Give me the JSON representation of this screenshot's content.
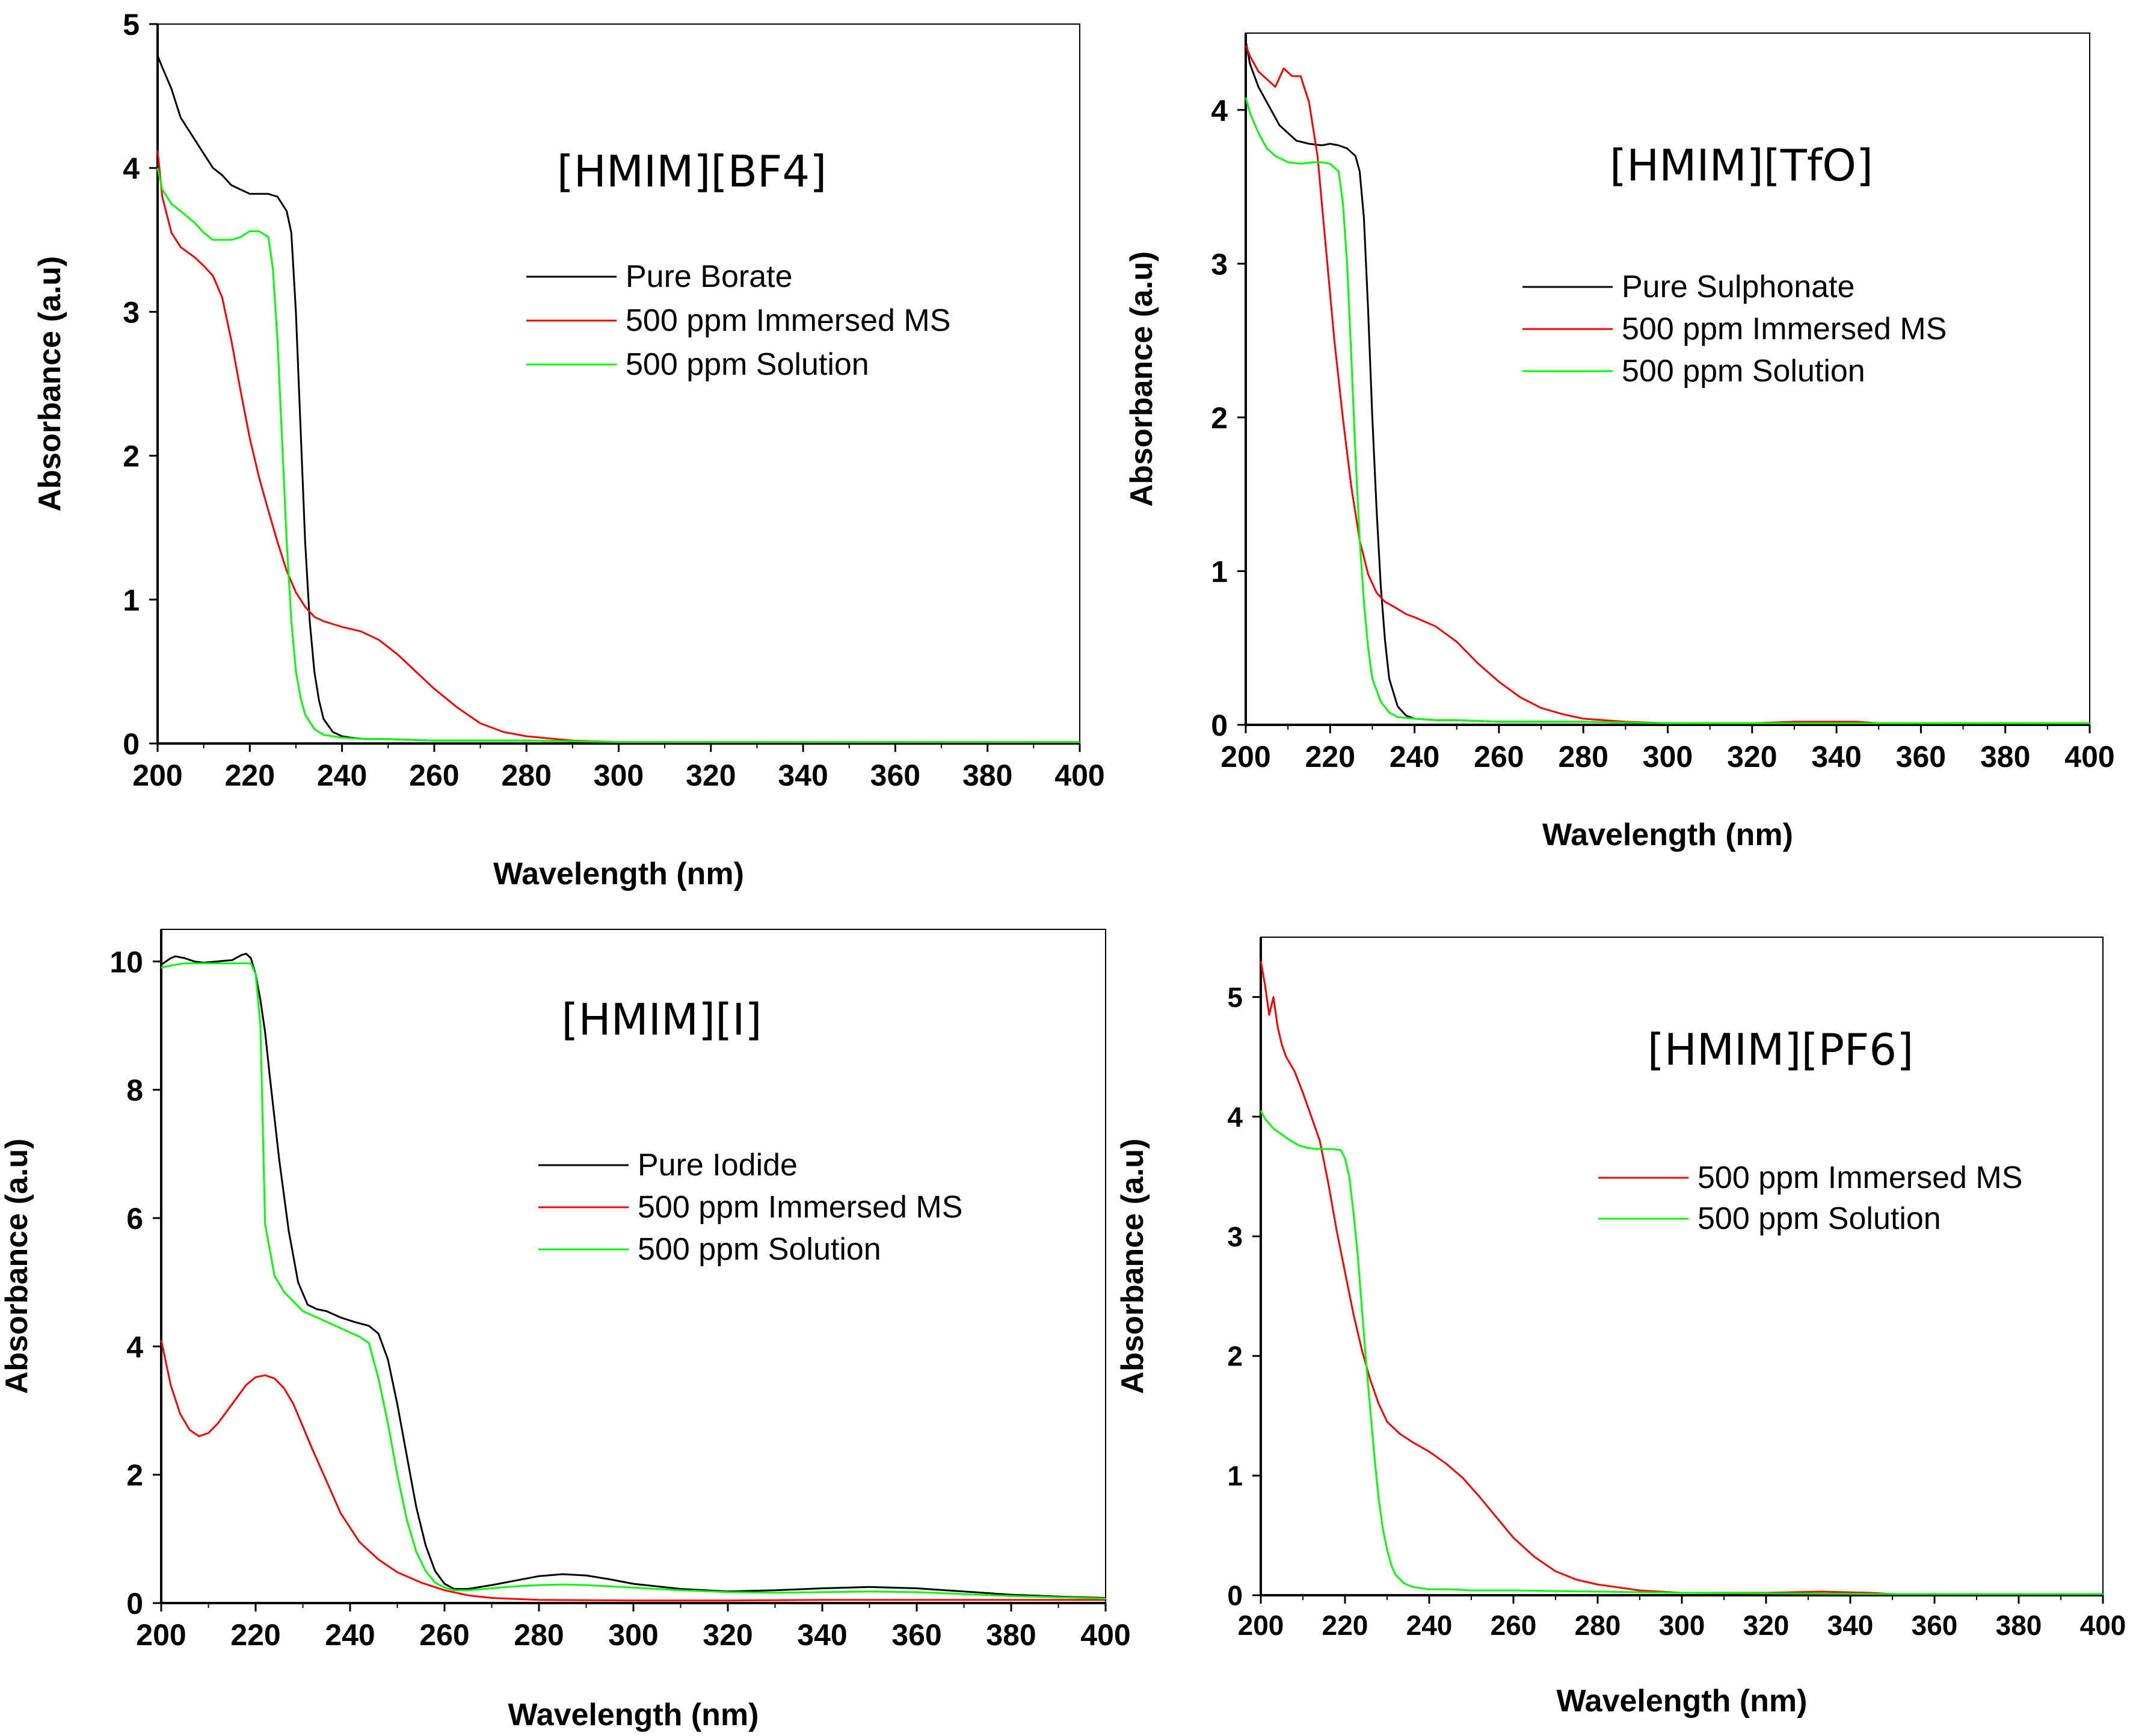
{
  "chart_data": [
    {
      "type": "line",
      "title": "[HMIM][BF4]",
      "xlabel": "Wavelength (nm)",
      "ylabel": "Absorbance (a.u)",
      "xlim": [
        200,
        400
      ],
      "ylim": [
        0,
        5
      ],
      "xticks": [
        200,
        220,
        240,
        260,
        280,
        300,
        320,
        340,
        360,
        380,
        400
      ],
      "yticks": [
        0,
        1,
        2,
        3,
        4,
        5
      ],
      "legend": "inside-upper-right",
      "series": [
        {
          "name": "Pure Borate",
          "color": "#000000",
          "x": [
            200,
            201,
            203,
            205,
            208,
            210,
            212,
            214,
            216,
            218,
            220,
            222,
            224,
            226,
            228,
            229,
            230,
            231,
            232,
            233,
            234,
            235,
            236,
            238,
            240,
            242,
            245,
            250,
            260,
            280,
            300,
            350,
            400
          ],
          "y": [
            4.78,
            4.7,
            4.55,
            4.35,
            4.2,
            4.1,
            4.0,
            3.95,
            3.88,
            3.85,
            3.82,
            3.82,
            3.82,
            3.8,
            3.7,
            3.55,
            3.0,
            2.2,
            1.4,
            0.85,
            0.5,
            0.3,
            0.17,
            0.08,
            0.05,
            0.04,
            0.03,
            0.03,
            0.02,
            0.02,
            0.01,
            0.01,
            0.01
          ]
        },
        {
          "name": "500 ppm Immersed MS",
          "color": "#ff0000",
          "x": [
            200,
            201,
            203,
            205,
            208,
            210,
            212,
            214,
            216,
            218,
            220,
            222,
            224,
            226,
            228,
            230,
            232,
            234,
            236,
            238,
            240,
            244,
            248,
            252,
            256,
            260,
            265,
            270,
            275,
            280,
            290,
            300,
            320,
            350,
            400
          ],
          "y": [
            4.12,
            3.8,
            3.55,
            3.45,
            3.38,
            3.32,
            3.25,
            3.1,
            2.8,
            2.45,
            2.12,
            1.85,
            1.62,
            1.4,
            1.2,
            1.05,
            0.95,
            0.88,
            0.85,
            0.83,
            0.81,
            0.78,
            0.72,
            0.62,
            0.5,
            0.38,
            0.25,
            0.14,
            0.08,
            0.05,
            0.02,
            0.01,
            0.01,
            0.01,
            0.01
          ]
        },
        {
          "name": "500 ppm Solution",
          "color": "#00ff00",
          "x": [
            200,
            201,
            203,
            205,
            208,
            210,
            212,
            214,
            216,
            218,
            220,
            222,
            224,
            225,
            226,
            227,
            228,
            229,
            230,
            231,
            232,
            234,
            236,
            238,
            240,
            245,
            250,
            260,
            280,
            300,
            350,
            400
          ],
          "y": [
            4.0,
            3.85,
            3.75,
            3.7,
            3.62,
            3.55,
            3.5,
            3.5,
            3.5,
            3.52,
            3.56,
            3.56,
            3.52,
            3.3,
            2.8,
            2.1,
            1.4,
            0.85,
            0.5,
            0.32,
            0.2,
            0.1,
            0.06,
            0.05,
            0.04,
            0.03,
            0.03,
            0.02,
            0.02,
            0.01,
            0.01,
            0.01
          ]
        }
      ]
    },
    {
      "type": "line",
      "title": "[HMIM][TfO]",
      "xlabel": "Wavelength (nm)",
      "ylabel": "Absorbance (a.u)",
      "xlim": [
        200,
        400
      ],
      "ylim": [
        0,
        4.5
      ],
      "xticks": [
        200,
        220,
        240,
        260,
        280,
        300,
        320,
        340,
        360,
        380,
        400
      ],
      "yticks": [
        0,
        1,
        2,
        3,
        4
      ],
      "legend": "inside-upper-right",
      "series": [
        {
          "name": "Pure Sulphonate",
          "color": "#000000",
          "x": [
            200,
            201,
            203,
            205,
            208,
            210,
            212,
            215,
            218,
            220,
            222,
            224,
            226,
            227,
            228,
            229,
            230,
            231,
            232,
            233,
            234,
            236,
            238,
            240,
            245,
            250,
            260,
            280,
            300,
            350,
            400
          ],
          "y": [
            4.45,
            4.3,
            4.15,
            4.05,
            3.9,
            3.85,
            3.8,
            3.78,
            3.77,
            3.78,
            3.77,
            3.75,
            3.7,
            3.6,
            3.3,
            2.7,
            2.0,
            1.4,
            0.9,
            0.55,
            0.3,
            0.12,
            0.06,
            0.04,
            0.03,
            0.03,
            0.02,
            0.02,
            0.01,
            0.01,
            0.01
          ]
        },
        {
          "name": "500 ppm Immersed MS",
          "color": "#ff0000",
          "x": [
            200,
            201,
            203,
            205,
            207,
            209,
            211,
            213,
            215,
            217,
            219,
            221,
            223,
            225,
            227,
            229,
            231,
            233,
            235,
            238,
            240,
            245,
            250,
            255,
            260,
            265,
            270,
            275,
            280,
            290,
            300,
            320,
            330,
            345,
            350,
            400
          ],
          "y": [
            4.42,
            4.35,
            4.25,
            4.2,
            4.15,
            4.27,
            4.22,
            4.22,
            4.05,
            3.7,
            3.1,
            2.5,
            2.0,
            1.55,
            1.2,
            0.98,
            0.86,
            0.8,
            0.77,
            0.72,
            0.7,
            0.64,
            0.54,
            0.4,
            0.28,
            0.18,
            0.11,
            0.07,
            0.04,
            0.02,
            0.01,
            0.01,
            0.02,
            0.02,
            0.01,
            0.01
          ]
        },
        {
          "name": "500 ppm Solution",
          "color": "#00ff00",
          "x": [
            200,
            201,
            203,
            205,
            207,
            210,
            213,
            216,
            218,
            220,
            222,
            223,
            224,
            225,
            226,
            227,
            228,
            229,
            230,
            232,
            234,
            236,
            240,
            245,
            250,
            260,
            280,
            300,
            350,
            400
          ],
          "y": [
            4.08,
            3.98,
            3.85,
            3.75,
            3.7,
            3.66,
            3.65,
            3.66,
            3.66,
            3.65,
            3.6,
            3.4,
            3.0,
            2.4,
            1.75,
            1.2,
            0.8,
            0.5,
            0.3,
            0.15,
            0.08,
            0.05,
            0.04,
            0.03,
            0.03,
            0.02,
            0.02,
            0.01,
            0.01,
            0.01
          ]
        }
      ]
    },
    {
      "type": "line",
      "title": "[HMIM][I]",
      "xlabel": "Wavelength (nm)",
      "ylabel": "Absorbance (a.u)",
      "xlim": [
        200,
        400
      ],
      "ylim": [
        0,
        10.5
      ],
      "xticks": [
        200,
        220,
        240,
        260,
        280,
        300,
        320,
        340,
        360,
        380,
        400
      ],
      "yticks": [
        0,
        2,
        4,
        6,
        8,
        10
      ],
      "legend": "inside-center-right",
      "series": [
        {
          "name": "Pure Iodide",
          "color": "#000000",
          "x": [
            200,
            201,
            202,
            203,
            205,
            207,
            209,
            212,
            215,
            217,
            218,
            219,
            220,
            221,
            222,
            223,
            225,
            227,
            229,
            231,
            233,
            235,
            238,
            241,
            244,
            246,
            248,
            250,
            252,
            254,
            256,
            258,
            260,
            262,
            265,
            270,
            275,
            280,
            285,
            290,
            295,
            300,
            310,
            320,
            330,
            340,
            350,
            360,
            370,
            380,
            390,
            400
          ],
          "y": [
            9.95,
            10.0,
            10.05,
            10.08,
            10.05,
            10.0,
            9.98,
            10.0,
            10.02,
            10.1,
            10.12,
            10.05,
            9.8,
            9.4,
            8.9,
            8.2,
            6.9,
            5.8,
            5.0,
            4.65,
            4.58,
            4.55,
            4.45,
            4.38,
            4.32,
            4.2,
            3.8,
            3.1,
            2.3,
            1.5,
            0.9,
            0.5,
            0.3,
            0.22,
            0.22,
            0.28,
            0.35,
            0.42,
            0.45,
            0.43,
            0.37,
            0.3,
            0.22,
            0.18,
            0.2,
            0.23,
            0.25,
            0.23,
            0.18,
            0.13,
            0.1,
            0.08
          ]
        },
        {
          "name": "500 ppm Immersed MS",
          "color": "#ff0000",
          "x": [
            200,
            202,
            204,
            206,
            208,
            210,
            212,
            214,
            216,
            218,
            220,
            222,
            224,
            226,
            228,
            230,
            232,
            235,
            238,
            242,
            246,
            250,
            255,
            260,
            265,
            270,
            280,
            300,
            320,
            340,
            360,
            380,
            400
          ],
          "y": [
            4.1,
            3.4,
            2.95,
            2.7,
            2.6,
            2.65,
            2.8,
            3.0,
            3.2,
            3.4,
            3.52,
            3.55,
            3.5,
            3.35,
            3.1,
            2.75,
            2.4,
            1.9,
            1.4,
            0.95,
            0.68,
            0.48,
            0.32,
            0.2,
            0.12,
            0.08,
            0.05,
            0.04,
            0.04,
            0.05,
            0.05,
            0.05,
            0.05
          ]
        },
        {
          "name": "500 ppm Solution",
          "color": "#00ff00",
          "x": [
            200,
            201,
            203,
            205,
            207,
            210,
            213,
            216,
            218,
            219,
            220,
            221,
            222,
            224,
            226,
            228,
            230,
            233,
            236,
            239,
            242,
            244,
            246,
            248,
            250,
            252,
            254,
            256,
            258,
            260,
            262,
            265,
            270,
            275,
            280,
            285,
            290,
            300,
            310,
            320,
            330,
            340,
            350,
            360,
            370,
            380,
            390,
            400
          ],
          "y": [
            9.9,
            9.92,
            9.95,
            9.97,
            9.97,
            9.97,
            9.97,
            9.97,
            9.97,
            9.97,
            9.8,
            9.0,
            5.9,
            5.1,
            4.85,
            4.7,
            4.55,
            4.45,
            4.35,
            4.25,
            4.15,
            4.05,
            3.5,
            2.8,
            2.0,
            1.3,
            0.8,
            0.5,
            0.32,
            0.24,
            0.2,
            0.2,
            0.23,
            0.26,
            0.28,
            0.29,
            0.28,
            0.24,
            0.2,
            0.17,
            0.16,
            0.17,
            0.18,
            0.17,
            0.14,
            0.11,
            0.09,
            0.07
          ]
        }
      ]
    },
    {
      "type": "line",
      "title": "[HMIM][PF6]",
      "xlabel": "Wavelength (nm)",
      "ylabel": "Absorbance (a.u)",
      "xlim": [
        200,
        400
      ],
      "ylim": [
        0,
        5.5
      ],
      "xticks": [
        200,
        220,
        240,
        260,
        280,
        300,
        320,
        340,
        360,
        380,
        400
      ],
      "yticks": [
        0,
        1,
        2,
        3,
        4,
        5
      ],
      "legend": "inside-center-right",
      "series": [
        {
          "name": "500 ppm Immersed MS",
          "color": "#ff0000",
          "x": [
            200,
            201,
            202,
            203,
            204,
            205,
            206,
            208,
            210,
            212,
            214,
            216,
            218,
            220,
            222,
            224,
            226,
            228,
            230,
            233,
            236,
            240,
            244,
            248,
            252,
            256,
            260,
            265,
            270,
            275,
            280,
            290,
            300,
            320,
            333,
            345,
            350,
            400
          ],
          "y": [
            5.3,
            5.1,
            4.85,
            5.0,
            4.75,
            4.6,
            4.5,
            4.38,
            4.2,
            4.0,
            3.8,
            3.45,
            3.05,
            2.7,
            2.35,
            2.05,
            1.8,
            1.6,
            1.45,
            1.35,
            1.28,
            1.2,
            1.1,
            0.98,
            0.82,
            0.65,
            0.48,
            0.32,
            0.2,
            0.13,
            0.09,
            0.04,
            0.02,
            0.02,
            0.03,
            0.02,
            0.01,
            0.01
          ]
        },
        {
          "name": "500 ppm Solution",
          "color": "#00ff00",
          "x": [
            200,
            201,
            203,
            205,
            207,
            209,
            211,
            213,
            215,
            217,
            219,
            220,
            221,
            222,
            223,
            224,
            225,
            226,
            227,
            228,
            229,
            230,
            231,
            232,
            234,
            236,
            240,
            245,
            250,
            260,
            280,
            300,
            350,
            400
          ],
          "y": [
            4.05,
            3.98,
            3.9,
            3.85,
            3.8,
            3.76,
            3.74,
            3.73,
            3.73,
            3.73,
            3.72,
            3.65,
            3.5,
            3.2,
            2.85,
            2.4,
            1.95,
            1.55,
            1.15,
            0.8,
            0.55,
            0.38,
            0.25,
            0.17,
            0.1,
            0.07,
            0.05,
            0.05,
            0.04,
            0.04,
            0.03,
            0.02,
            0.01,
            0.01
          ]
        }
      ]
    }
  ]
}
